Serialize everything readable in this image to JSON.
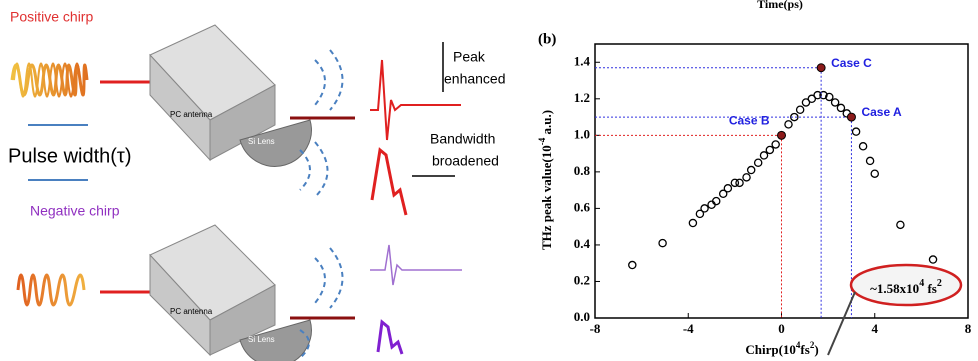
{
  "diagram": {
    "positive": "Positive chirp",
    "negative": "Negative chirp",
    "pulse_width": "Pulse width(τ)",
    "antenna": [
      "PC antenna",
      "PC antenna"
    ],
    "lens": [
      "Si Lens",
      "Si Lens"
    ],
    "peak": [
      "Peak",
      "enhanced"
    ],
    "bandwidth": [
      "Bandwidth",
      "broadened"
    ]
  },
  "chart_data": {
    "type": "scatter",
    "panel": "(b)",
    "top_label": "Time(ps)",
    "xlabel": [
      "Chirp",
      "(10",
      "4",
      "fs",
      "2",
      ")"
    ],
    "ylabel": [
      "THz peak value",
      "(10",
      "-4",
      " a.u.)"
    ],
    "xlim": [
      -8,
      8
    ],
    "ylim": [
      0,
      1.5
    ],
    "xticks": [
      -8,
      -4,
      0,
      4,
      8
    ],
    "yticks": [
      {
        "value": 0,
        "label": "0.0"
      },
      {
        "value": 0.2,
        "label": "0.2"
      },
      {
        "value": 0.4,
        "label": "0.4"
      },
      {
        "value": 0.6,
        "label": "0.6"
      },
      {
        "value": 0.8,
        "label": "0.8"
      },
      {
        "value": 1.0,
        "label": "1.0"
      },
      {
        "value": 1.2,
        "label": "1.2"
      },
      {
        "value": 1.4,
        "label": "1.4"
      }
    ],
    "series": [
      {
        "color": "#000000",
        "x": [
          -6.4,
          -5.1,
          -3.8,
          -3.5,
          -3.3,
          -3.0,
          -2.8,
          -2.5,
          -2.3,
          -2.0,
          -1.8,
          -1.5,
          -1.3,
          -1.0,
          -0.75,
          -0.5,
          -0.25,
          0.3,
          0.55,
          0.8,
          1.05,
          1.3,
          1.55,
          1.8,
          2.05,
          2.3,
          2.55,
          2.8,
          3.2,
          3.5,
          3.8,
          4.0,
          5.1,
          6.5
        ],
        "values": [
          0.29,
          0.41,
          0.52,
          0.57,
          0.6,
          0.62,
          0.64,
          0.68,
          0.71,
          0.74,
          0.74,
          0.77,
          0.81,
          0.85,
          0.89,
          0.92,
          0.95,
          1.06,
          1.1,
          1.14,
          1.18,
          1.2,
          1.22,
          1.22,
          1.21,
          1.18,
          1.15,
          1.12,
          1.02,
          0.94,
          0.86,
          0.79,
          0.51,
          0.32
        ]
      }
    ],
    "cases": [
      {
        "label": "Case B",
        "x": 0,
        "y": 1.0,
        "color": "#e02020"
      },
      {
        "label": "Case C",
        "x": 1.7,
        "y": 1.37,
        "color": "#3030e0"
      },
      {
        "label": "Case A",
        "x": 3.0,
        "y": 1.1,
        "color": "#3030e0"
      }
    ],
    "callout": [
      "~1.58x10",
      "4",
      " fs",
      "2"
    ]
  }
}
